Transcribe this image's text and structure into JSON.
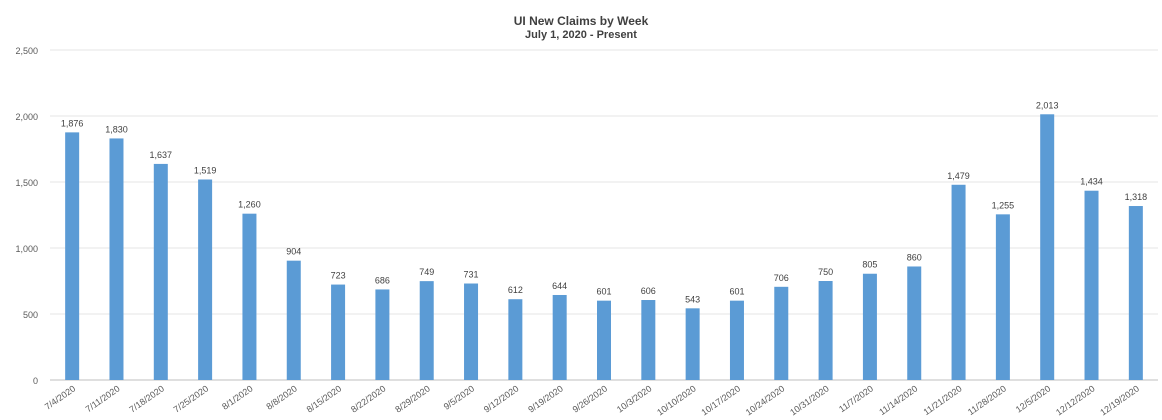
{
  "chart_data": {
    "type": "bar",
    "title": "UI New Claims by Week",
    "subtitle": "July 1, 2020 - Present",
    "xlabel": "",
    "ylabel": "",
    "ylim": [
      0,
      2500
    ],
    "yticks": [
      0,
      500,
      1000,
      1500,
      2000,
      2500
    ],
    "ytick_labels": [
      "0",
      "500",
      "1,000",
      "1,500",
      "2,000",
      "2,500"
    ],
    "grid": true,
    "legend": "none",
    "bar_color": "#5B9BD5",
    "categories": [
      "7/4/2020",
      "7/11/2020",
      "7/18/2020",
      "7/25/2020",
      "8/1/2020",
      "8/8/2020",
      "8/15/2020",
      "8/22/2020",
      "8/29/2020",
      "9/5/2020",
      "9/12/2020",
      "9/19/2020",
      "9/26/2020",
      "10/3/2020",
      "10/10/2020",
      "10/17/2020",
      "10/24/2020",
      "10/31/2020",
      "11/7/2020",
      "11/14/2020",
      "11/21/2020",
      "11/28/2020",
      "12/5/2020",
      "12/12/2020",
      "12/19/2020"
    ],
    "values": [
      1876,
      1830,
      1637,
      1519,
      1260,
      904,
      723,
      686,
      749,
      731,
      612,
      644,
      601,
      606,
      543,
      601,
      706,
      750,
      805,
      860,
      1479,
      1255,
      2013,
      1434,
      1318
    ],
    "value_labels": [
      "1,876",
      "1,830",
      "1,637",
      "1,519",
      "1,260",
      "904",
      "723",
      "686",
      "749",
      "731",
      "612",
      "644",
      "601",
      "606",
      "543",
      "601",
      "706",
      "750",
      "805",
      "860",
      "1,479",
      "1,255",
      "2,013",
      "1,434",
      "1,318"
    ]
  }
}
